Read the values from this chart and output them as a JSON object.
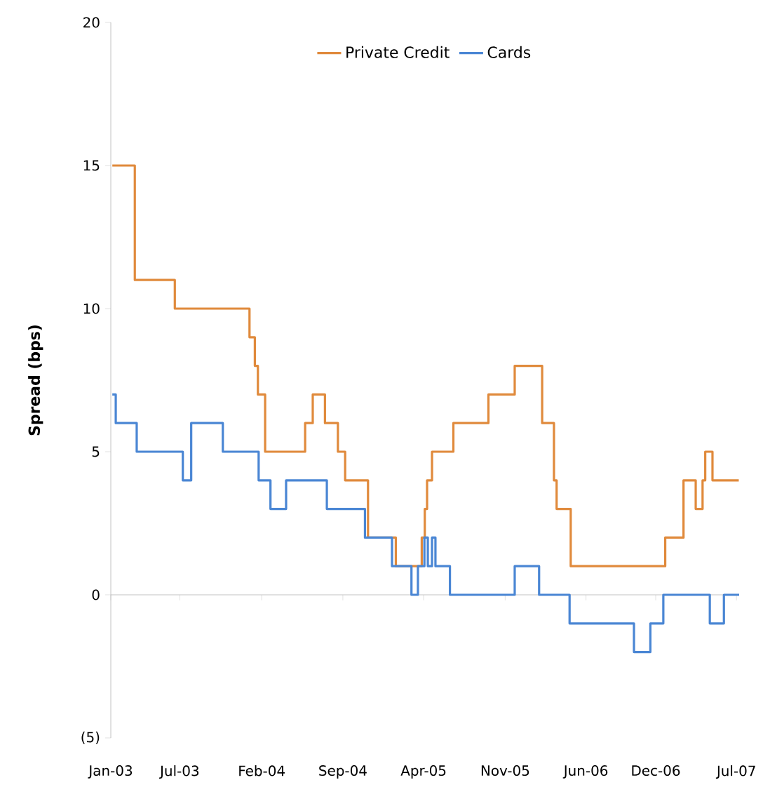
{
  "chart_data": {
    "type": "step",
    "ylabel": "Spread (bps)",
    "series": [
      {
        "name": "Private Credit",
        "color": "#e08a3c",
        "x": [
          "2003-01-05",
          "2003-03-05",
          "2003-06-18",
          "2003-12-31",
          "2004-01-14",
          "2004-01-22",
          "2004-02-10",
          "2004-05-25",
          "2004-06-14",
          "2004-07-16",
          "2004-08-19",
          "2004-09-07",
          "2004-11-06",
          "2005-01-18",
          "2005-03-27",
          "2005-04-04",
          "2005-04-10",
          "2005-04-23",
          "2005-06-18",
          "2005-09-18",
          "2005-11-26",
          "2006-02-06",
          "2006-03-09",
          "2006-03-16",
          "2006-04-22",
          "2006-12-26",
          "2007-02-12",
          "2007-03-16",
          "2007-04-03",
          "2007-04-10",
          "2007-04-29",
          "2007-07-07"
        ],
        "values": [
          15,
          11,
          10,
          9,
          8,
          7,
          5,
          6,
          7,
          6,
          5,
          4,
          2,
          1,
          2,
          3,
          4,
          5,
          6,
          7,
          8,
          6,
          4,
          3,
          1,
          2,
          4,
          3,
          4,
          5,
          4,
          4
        ]
      },
      {
        "name": "Cards",
        "color": "#4a86d4",
        "x": [
          "2003-01-05",
          "2003-01-14",
          "2003-03-10",
          "2003-07-09",
          "2003-07-31",
          "2003-10-22",
          "2004-01-24",
          "2004-02-24",
          "2004-04-05",
          "2004-07-21",
          "2004-10-29",
          "2005-01-08",
          "2005-02-28",
          "2005-03-17",
          "2005-04-03",
          "2005-04-12",
          "2005-04-23",
          "2005-05-02",
          "2005-06-09",
          "2005-11-26",
          "2006-01-29",
          "2006-04-19",
          "2006-10-05",
          "2006-11-17",
          "2006-12-21",
          "2007-04-22",
          "2007-05-29",
          "2007-07-08"
        ],
        "values": [
          7,
          6,
          5,
          4,
          6,
          5,
          4,
          3,
          4,
          3,
          2,
          1,
          0,
          1,
          2,
          1,
          2,
          1,
          0,
          1,
          0,
          -1,
          -2,
          -1,
          0,
          -1,
          0,
          0
        ]
      }
    ],
    "xlim": [
      "2003-01-01",
      "2007-07-08"
    ],
    "xticks": [
      {
        "value": "2003-01-01",
        "label": "Jan-03"
      },
      {
        "value": "2003-07-01",
        "label": "Jul-03"
      },
      {
        "value": "2004-02-01",
        "label": "Feb-04"
      },
      {
        "value": "2004-09-01",
        "label": "Sep-04"
      },
      {
        "value": "2005-04-01",
        "label": "Apr-05"
      },
      {
        "value": "2005-11-01",
        "label": "Nov-05"
      },
      {
        "value": "2006-06-01",
        "label": "Jun-06"
      },
      {
        "value": "2006-12-01",
        "label": "Dec-06"
      },
      {
        "value": "2007-07-01",
        "label": "Jul-07"
      }
    ],
    "ylim": [
      -5,
      20
    ],
    "yticks": [
      {
        "value": -5,
        "label": "(5)"
      },
      0,
      5,
      10,
      15,
      20
    ],
    "legend": "top",
    "marker": "none",
    "line_style": "solid"
  }
}
